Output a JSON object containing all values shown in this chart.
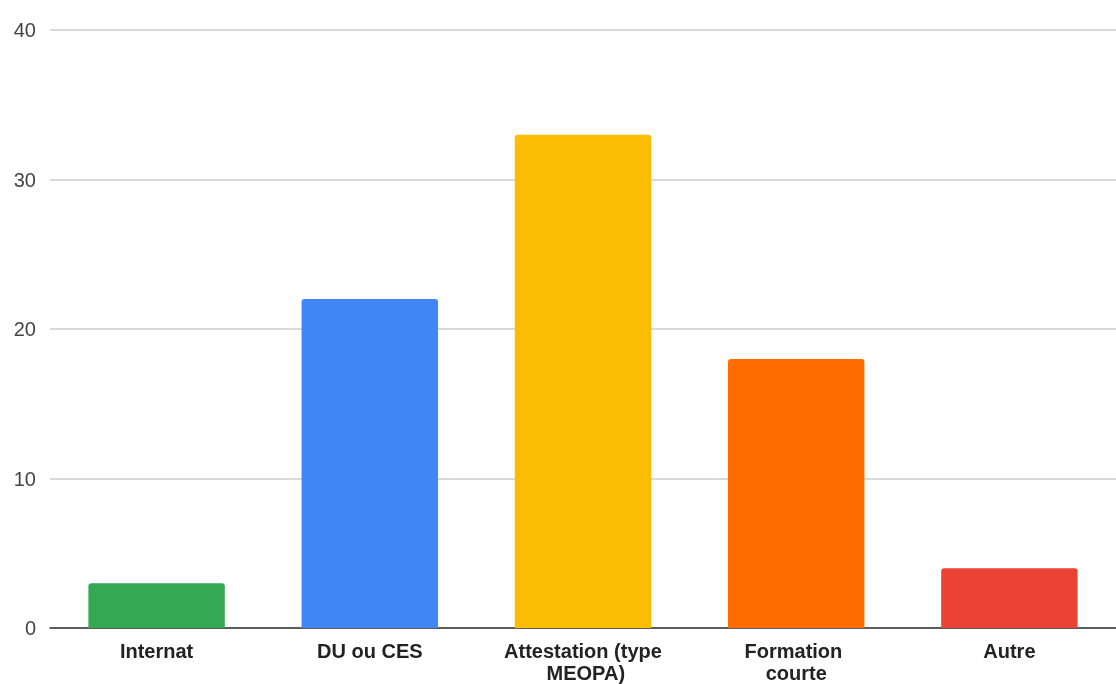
{
  "chart_data": {
    "type": "bar",
    "categories": [
      "Internat",
      "DU ou CES",
      "Attestation (type MEOPA)",
      "Formation courte",
      "Autre"
    ],
    "values": [
      3,
      22,
      33,
      18,
      4
    ],
    "colors": [
      "#34a853",
      "#4285f4",
      "#fbbc04",
      "#ff6d01",
      "#ea4335"
    ],
    "ylim": [
      0,
      40
    ],
    "yticks": [
      0,
      10,
      20,
      30,
      40
    ],
    "grid": "y"
  }
}
